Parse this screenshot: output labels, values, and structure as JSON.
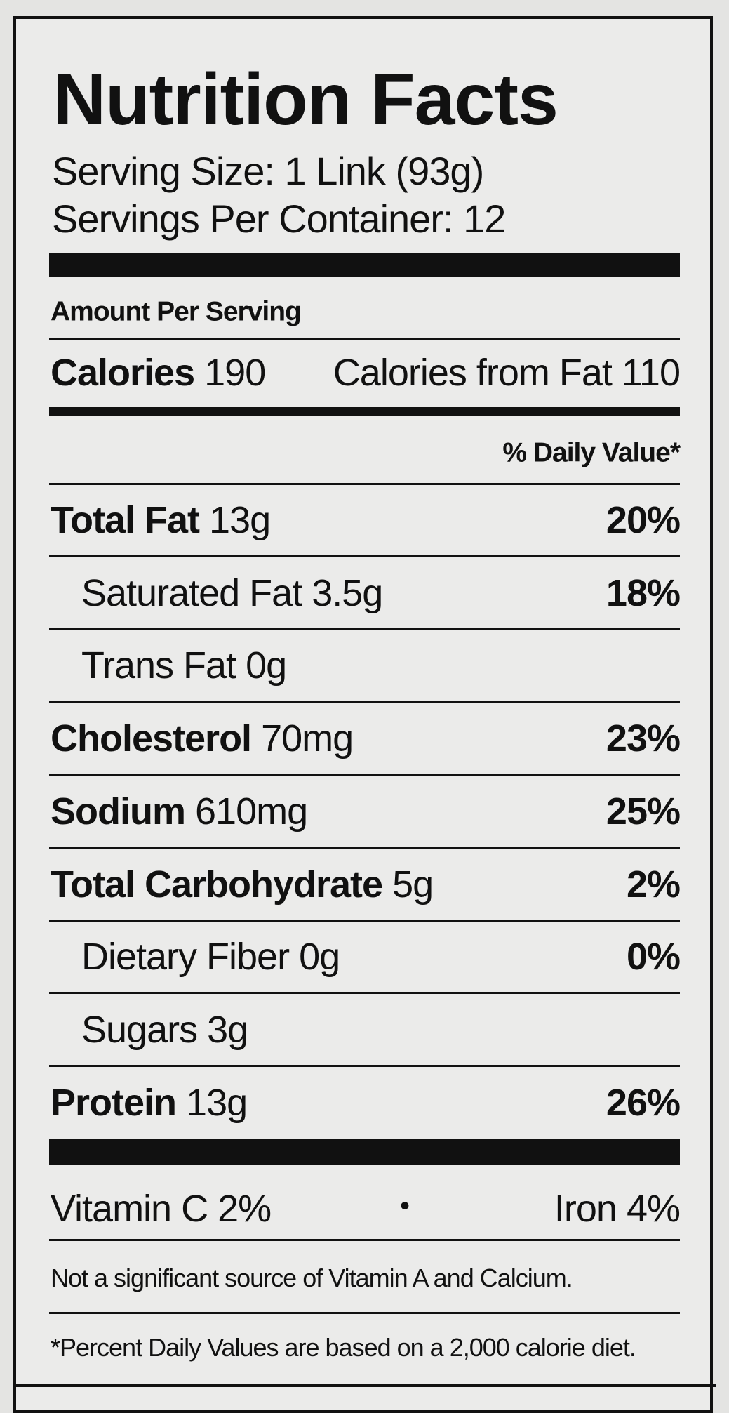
{
  "header": {
    "title": "Nutrition Facts",
    "serving_size": "Serving Size: 1 Link (93g)",
    "servings_per_container": "Servings Per Container: 12"
  },
  "amount_per_serving": "Amount Per Serving",
  "calories": {
    "label": "Calories",
    "value": "190",
    "from_fat": "Calories from Fat 110"
  },
  "daily_value_heading": "% Daily Value*",
  "rows": [
    {
      "name": "Total Fat",
      "amount": "13g",
      "dv": "20%"
    },
    {
      "name": "Saturated Fat",
      "amount": "3.5g",
      "dv": "18%",
      "indent": true
    },
    {
      "name": "Trans Fat",
      "amount": "0g",
      "indent": true
    },
    {
      "name": "Cholesterol",
      "amount": "70mg",
      "dv": "23%"
    },
    {
      "name": "Sodium",
      "amount": "610mg",
      "dv": "25%"
    },
    {
      "name": "Total Carbohydrate",
      "amount": "5g",
      "dv": "2%"
    },
    {
      "name": "Dietary Fiber",
      "amount": "0g",
      "dv": "0%",
      "indent": true
    },
    {
      "name": "Sugars",
      "amount": "3g",
      "indent": true
    },
    {
      "name": "Protein",
      "amount": "13g",
      "dv": "26%"
    }
  ],
  "vitamins": [
    "Vitamin C 2%",
    "Iron 4%"
  ],
  "footnotes": [
    "Not a significant source of Vitamin A and Calcium.",
    "*Percent Daily Values are based on a 2,000 calorie diet."
  ]
}
